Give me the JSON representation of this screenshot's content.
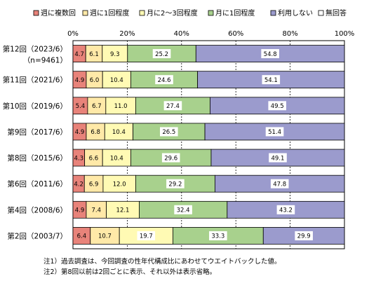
{
  "chart_data": {
    "type": "bar",
    "orientation": "horizontal",
    "stacked": true,
    "xlim": [
      0,
      100
    ],
    "x_ticks": [
      "0%",
      "20%",
      "40%",
      "60%",
      "80%",
      "100%"
    ],
    "grid": true,
    "legend_position": "top",
    "categories": [
      [
        "第12回（2023/6）",
        "（n=9461）"
      ],
      [
        "第11回（2021/6）"
      ],
      [
        "第10回（2019/6）"
      ],
      [
        "第9回（2017/6）"
      ],
      [
        "第8回（2015/6）"
      ],
      [
        "第6回（2011/6）"
      ],
      [
        "第4回（2008/6）"
      ],
      [
        "第2回（2003/7）"
      ]
    ],
    "series": [
      {
        "name": "週に複数回",
        "color": "#e8837a",
        "values": [
          4.7,
          4.9,
          5.4,
          4.9,
          4.3,
          4.2,
          4.9,
          6.4
        ]
      },
      {
        "name": "週に1回程度",
        "color": "#ffe9a8",
        "values": [
          6.1,
          6.0,
          6.7,
          6.8,
          6.6,
          6.9,
          7.4,
          10.7
        ]
      },
      {
        "name": "月に2～3回程度",
        "color": "#fffab4",
        "values": [
          9.3,
          10.4,
          11.0,
          10.4,
          10.4,
          12.0,
          12.1,
          19.7
        ]
      },
      {
        "name": "月に1回程度",
        "color": "#a8d18d",
        "values": [
          25.2,
          24.6,
          27.4,
          26.5,
          29.6,
          29.2,
          32.4,
          33.3
        ]
      },
      {
        "name": "利用しない",
        "color": "#9b9bcd",
        "values": [
          54.8,
          54.1,
          49.5,
          51.4,
          49.1,
          47.8,
          43.2,
          29.9
        ]
      },
      {
        "name": "無回答",
        "color": "#ffffff",
        "values": [
          0,
          0,
          0,
          0,
          0,
          0,
          0,
          0
        ]
      }
    ]
  },
  "notes": [
    "注1）過去調査は、今回調査の性年代構成比にあわせてウエイトバックした値。",
    "注2）第8回以前は2回ごとに表示、それ以外は表示省略。"
  ]
}
